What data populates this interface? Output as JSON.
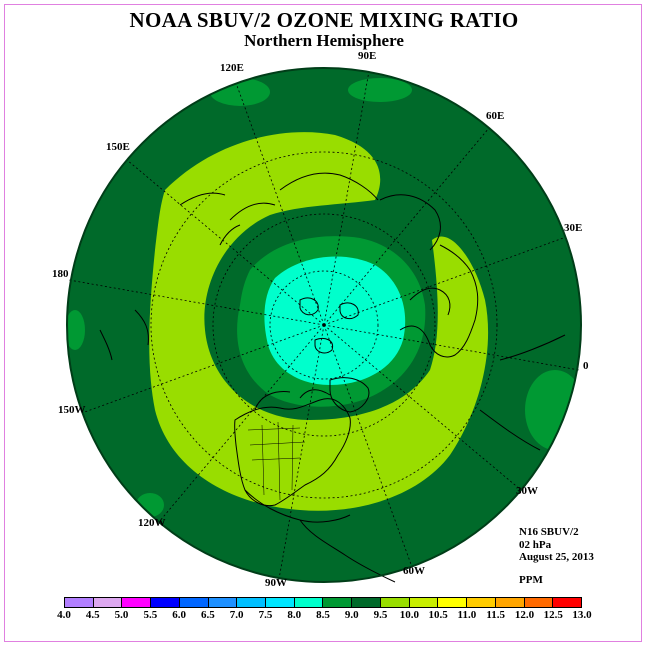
{
  "title": "NOAA SBUV/2 OZONE MIXING RATIO",
  "subtitle": "Northern Hemisphere",
  "longitude_labels": [
    "90E",
    "60E",
    "30E",
    "0",
    "30W",
    "60W",
    "90W",
    "120W",
    "150W",
    "180",
    "150E",
    "120E"
  ],
  "info": {
    "instrument": "N16 SBUV/2",
    "level": "02 hPa",
    "date": "August 25, 2013",
    "units": "PPM"
  },
  "colorbar": {
    "labels": [
      "4.0",
      "4.5",
      "5.0",
      "5.5",
      "6.0",
      "6.5",
      "7.0",
      "7.5",
      "8.0",
      "8.5",
      "9.0",
      "9.5",
      "10.0",
      "10.5",
      "11.0",
      "11.5",
      "12.0",
      "12.5",
      "13.0"
    ],
    "colors": [
      "#b27fff",
      "#dda8f0",
      "#ff00ff",
      "#0000ff",
      "#0066ff",
      "#1e90ff",
      "#00bfff",
      "#00e6ff",
      "#00ffcc",
      "#009933",
      "#006a2a",
      "#99dd00",
      "#c8ee00",
      "#ffff00",
      "#ffcc00",
      "#ffa500",
      "#ff6a00",
      "#ff0000",
      "#8b5a2b"
    ]
  },
  "map_colors": {
    "background_level": "#006a2a",
    "ring_light": "#99dd00",
    "ring_mid": "#009933",
    "center": "#00ffcc",
    "graticule": "#000000",
    "coast": "#000000"
  }
}
